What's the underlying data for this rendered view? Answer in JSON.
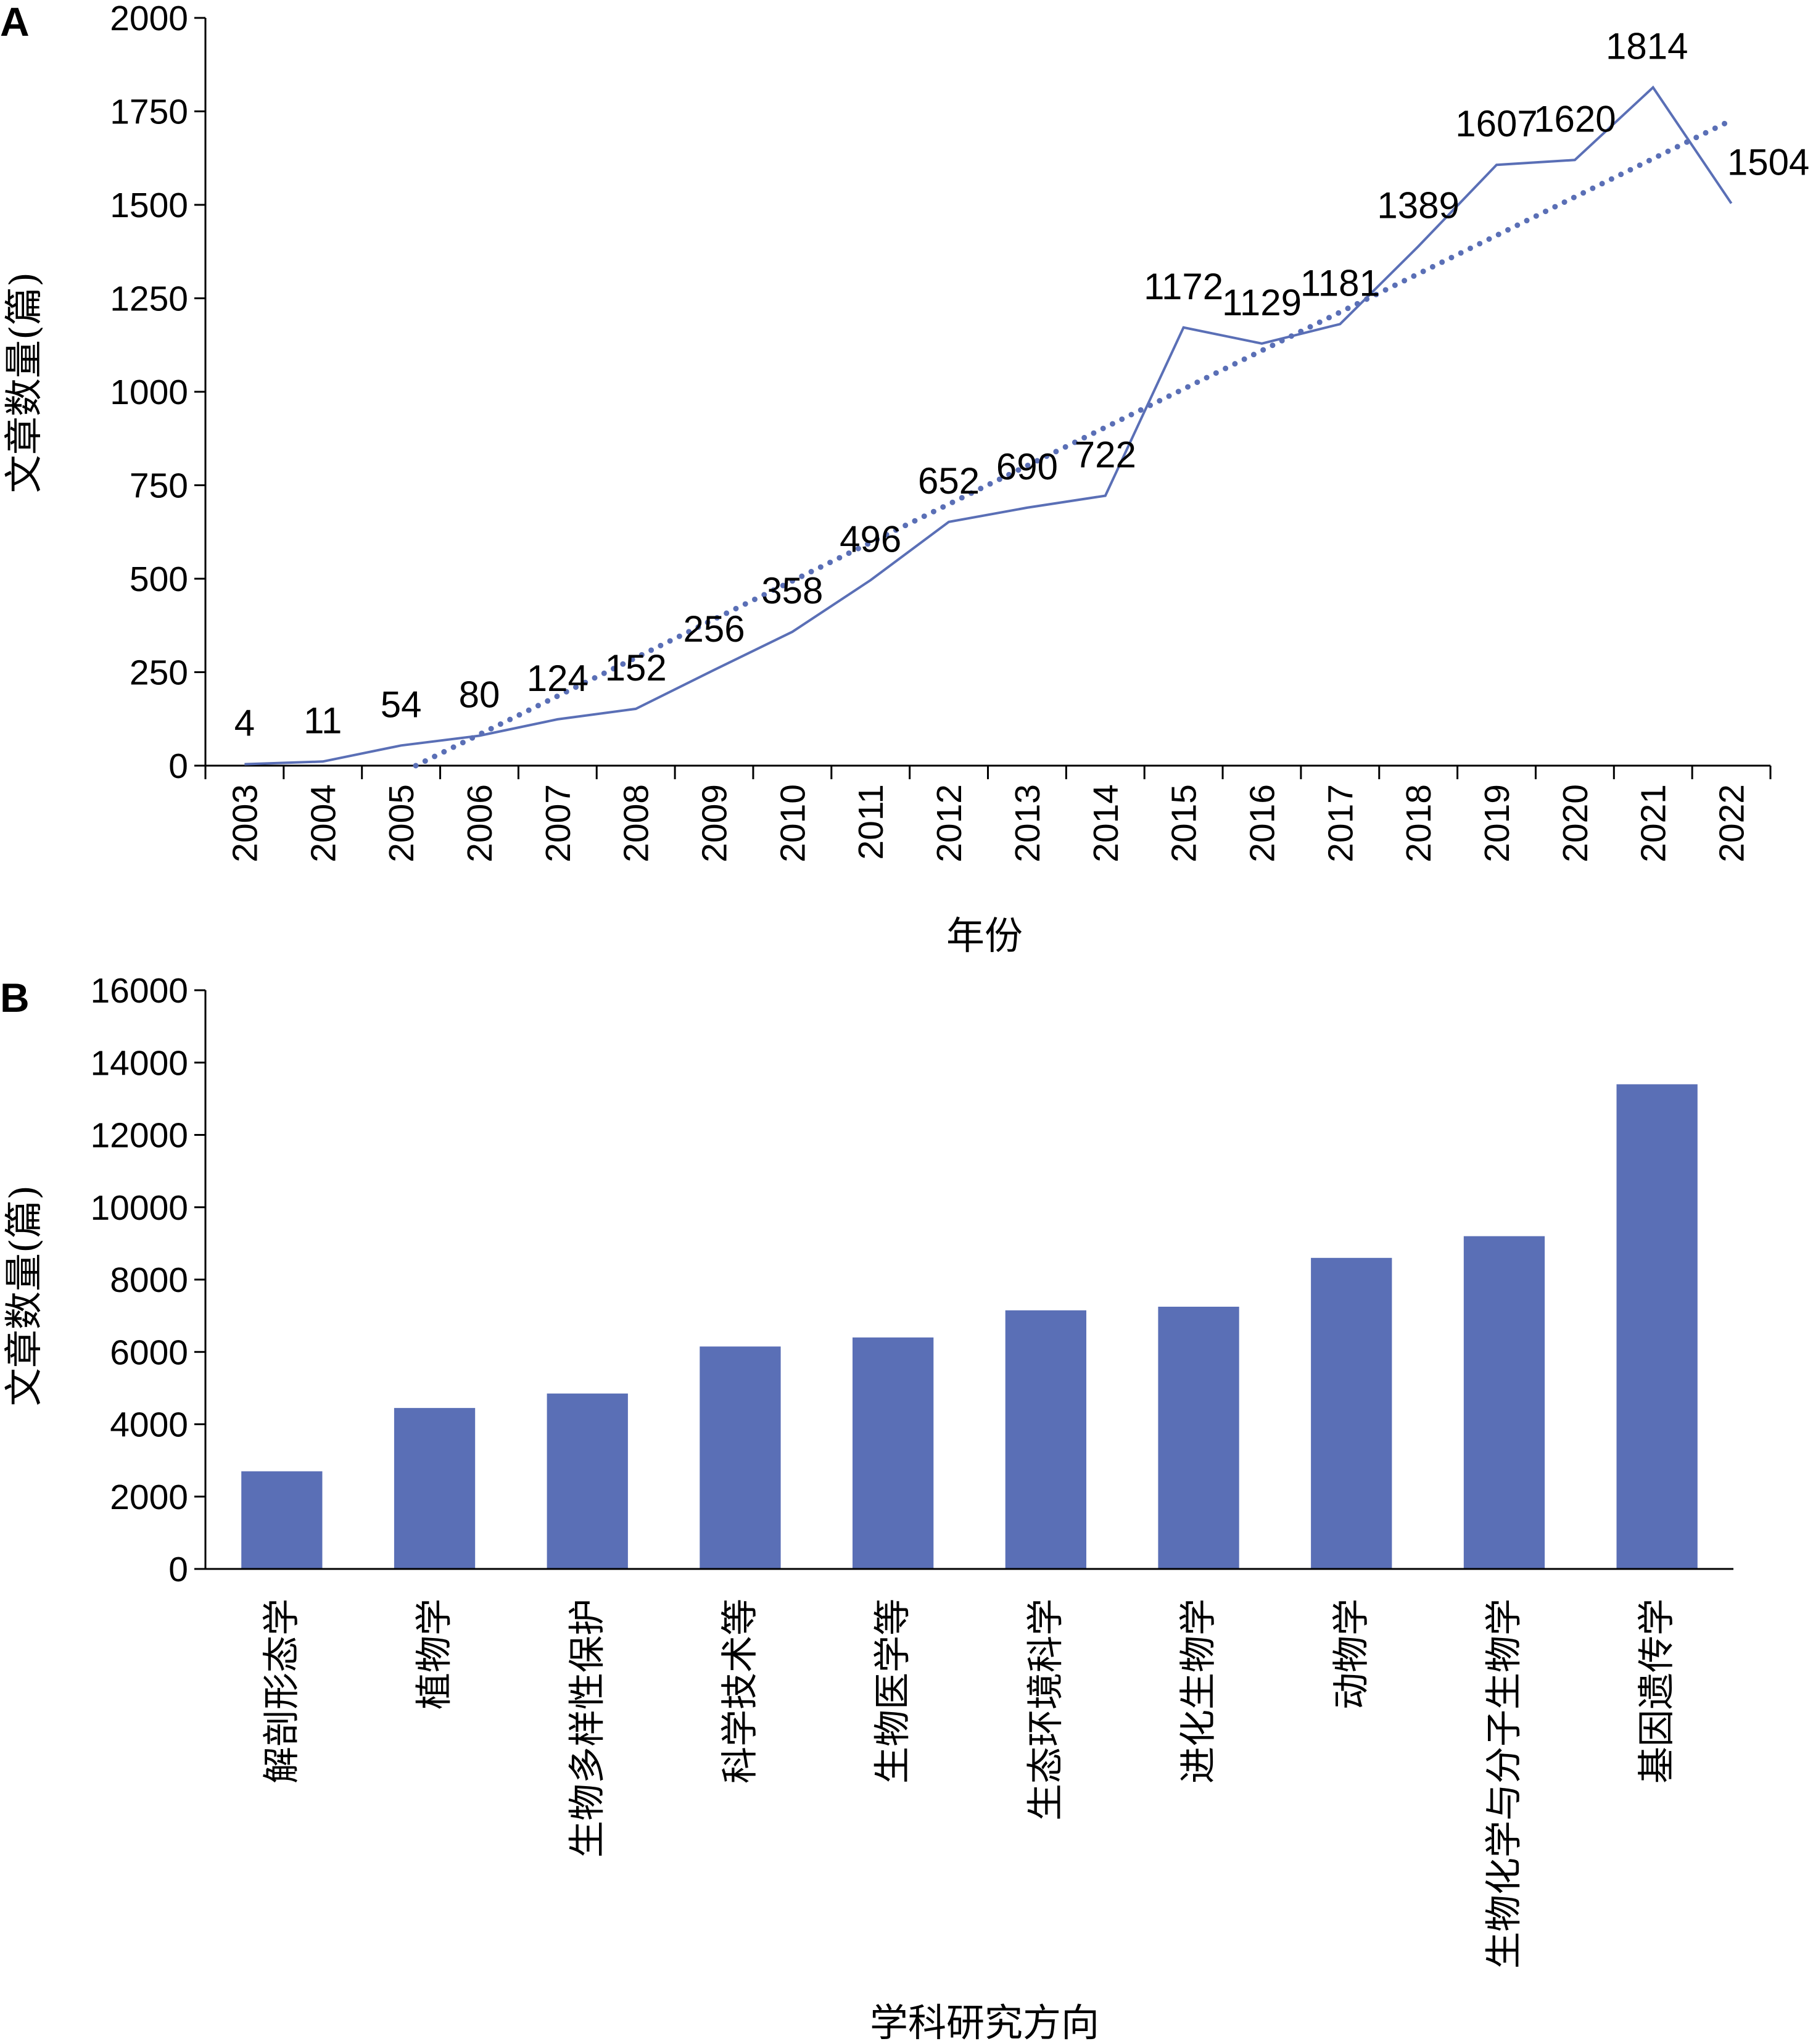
{
  "chart_data": [
    {
      "type": "line",
      "panel_label": "A",
      "xlabel": "年份",
      "ylabel": "文章数量(篇)",
      "ylim": [
        0,
        2000
      ],
      "yticks": [
        "0",
        "250",
        "500",
        "750",
        "1000",
        "1250",
        "1500",
        "1750",
        "2000"
      ],
      "x": [
        "2003",
        "2004",
        "2005",
        "2006",
        "2007",
        "2008",
        "2009",
        "2010",
        "2011",
        "2012",
        "2013",
        "2014",
        "2015",
        "2016",
        "2017",
        "2018",
        "2019",
        "2020",
        "2021",
        "2022"
      ],
      "series": [
        {
          "values": [
            4,
            11,
            54,
            80,
            124,
            152,
            256,
            358,
            496,
            652,
            690,
            722,
            1172,
            1129,
            1181,
            1389,
            1607,
            1620,
            1814,
            1504
          ],
          "labels": [
            "4",
            "11",
            "54",
            "80",
            "124",
            "152",
            "256",
            "358",
            "496",
            "652",
            "690",
            "722",
            "1172",
            "1129",
            "1181",
            "1389",
            "1607",
            "1620",
            "1814",
            "1504"
          ],
          "color": "#5a6fb6"
        }
      ],
      "trendline": {
        "type": "linear",
        "style": "dotted",
        "color": "#5a6fb6"
      }
    },
    {
      "type": "bar",
      "panel_label": "B",
      "xlabel": "学科研究方向",
      "ylabel": "文章数量(篇)",
      "ylim": [
        0,
        16000
      ],
      "yticks": [
        "0",
        "2000",
        "4000",
        "6000",
        "8000",
        "10000",
        "12000",
        "14000",
        "16000"
      ],
      "categories": [
        "解剖形态学",
        "植物学",
        "生物多样性保护",
        "科学技术等",
        "生物医学等",
        "生态环境科学",
        "进化生物学",
        "动物学",
        "生物化学与分子生物学",
        "基因遗传学"
      ],
      "values": [
        2700,
        4450,
        4850,
        6150,
        6400,
        7150,
        7250,
        8600,
        9200,
        13400
      ],
      "color": "#5a6fb6"
    }
  ]
}
